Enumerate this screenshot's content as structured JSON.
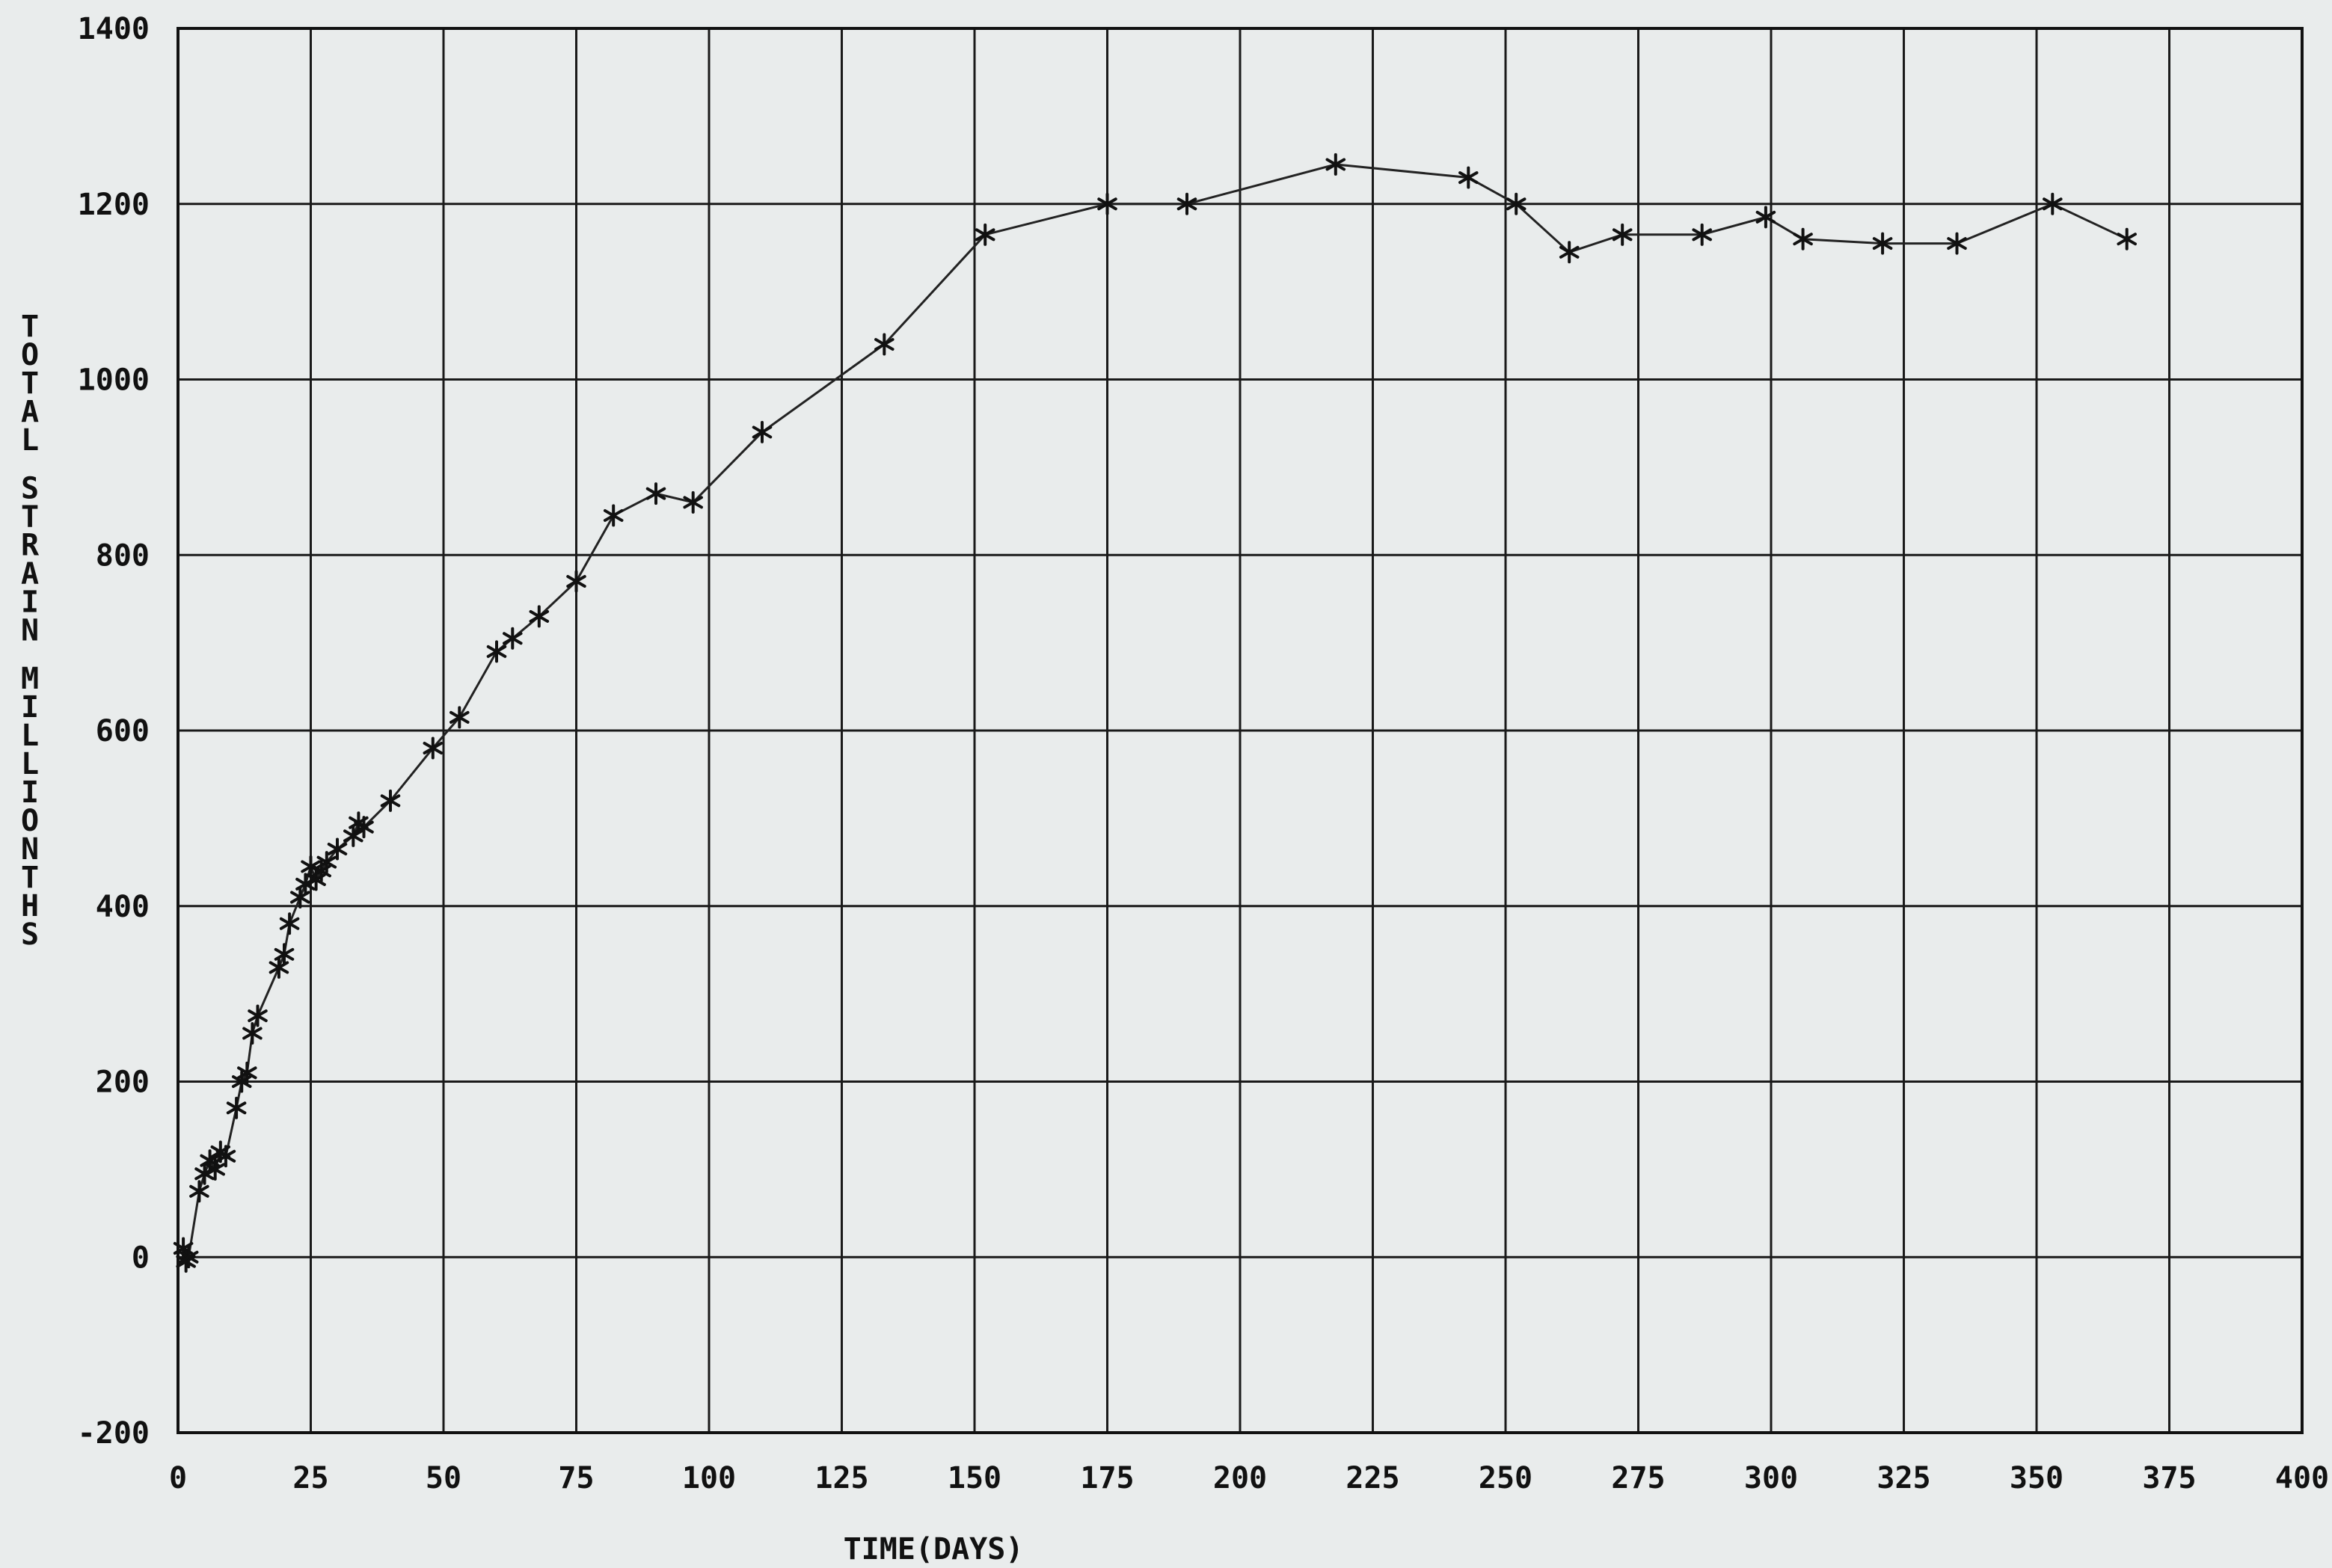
{
  "chart_data": {
    "type": "line",
    "title": "",
    "xlabel": "TIME(DAYS)",
    "ylabel": "TOTAL STRAIN MILLIONTHS",
    "xlim": [
      0,
      400
    ],
    "ylim": [
      -200,
      1400
    ],
    "xticks": [
      0,
      25,
      50,
      75,
      100,
      125,
      150,
      175,
      200,
      225,
      250,
      275,
      300,
      325,
      350,
      375,
      400
    ],
    "yticks": [
      -200,
      0,
      200,
      400,
      600,
      800,
      1000,
      1200,
      1400
    ],
    "xtick_labels": [
      "0",
      "25",
      "50",
      "75",
      "100",
      "125",
      "150",
      "175",
      "200",
      "225",
      "250",
      "275",
      "300",
      "325",
      "350",
      "375",
      "400"
    ],
    "ytick_labels": [
      "-200",
      "0",
      "200",
      "400",
      "600",
      "800",
      "1000",
      "1200",
      "1400"
    ],
    "grid": true,
    "marker": "asterisk",
    "series": [
      {
        "x": [
          1,
          1.5,
          2,
          4,
          5,
          6,
          7,
          8,
          9,
          11,
          12,
          13,
          14,
          15,
          19,
          20,
          21,
          23,
          24,
          25,
          26,
          27,
          28,
          30,
          33,
          34,
          35,
          40,
          48,
          53,
          60,
          63,
          68,
          75,
          82,
          90,
          97,
          110,
          133,
          152,
          175,
          190,
          218,
          243,
          252,
          262,
          272,
          287,
          299,
          306,
          321,
          335,
          353,
          367
        ],
        "y": [
          10,
          -5,
          0,
          75,
          95,
          110,
          100,
          120,
          115,
          170,
          200,
          210,
          255,
          275,
          330,
          345,
          380,
          410,
          425,
          445,
          430,
          440,
          450,
          465,
          480,
          495,
          490,
          520,
          580,
          615,
          690,
          705,
          730,
          770,
          845,
          870,
          860,
          940,
          1040,
          1165,
          1200,
          1200,
          1245,
          1230,
          1200,
          1145,
          1165,
          1165,
          1185,
          1160,
          1155,
          1155,
          1200,
          1160
        ]
      }
    ]
  }
}
